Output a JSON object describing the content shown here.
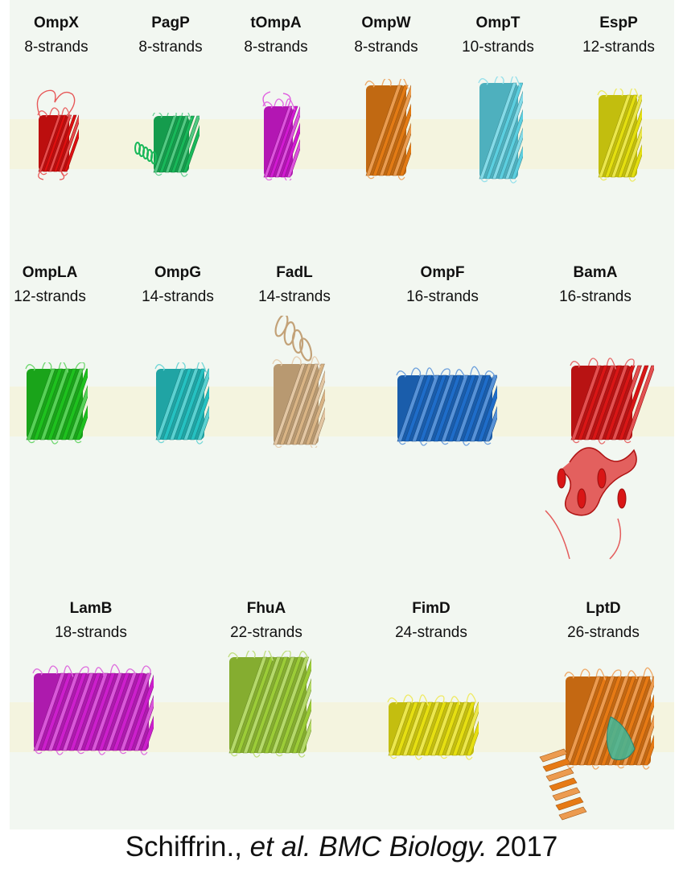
{
  "proteins": [
    {
      "name": "OmpX",
      "strands": "8-strands",
      "color": "#dd1010"
    },
    {
      "name": "PagP",
      "strands": "8-strands",
      "color": "#19b85a"
    },
    {
      "name": "tOmpA",
      "strands": "8-strands",
      "color": "#d21ad2"
    },
    {
      "name": "OmpW",
      "strands": "8-strands",
      "color": "#e37b15"
    },
    {
      "name": "OmpT",
      "strands": "10-strands",
      "color": "#5ccfe0"
    },
    {
      "name": "EspP",
      "strands": "12-strands",
      "color": "#e4df10"
    },
    {
      "name": "OmpLA",
      "strands": "12-strands",
      "color": "#1fc11f"
    },
    {
      "name": "OmpG",
      "strands": "14-strands",
      "color": "#26c1c1"
    },
    {
      "name": "FadL",
      "strands": "14-strands",
      "color": "#d9b485"
    },
    {
      "name": "OmpF",
      "strands": "16-strands",
      "color": "#1f6dc9"
    },
    {
      "name": "BamA",
      "strands": "16-strands",
      "color": "#d91616"
    },
    {
      "name": "LamB",
      "strands": "18-strands",
      "color": "#cc1fcc"
    },
    {
      "name": "FhuA",
      "strands": "22-strands",
      "color": "#9ccc38"
    },
    {
      "name": "FimD",
      "strands": "24-strands",
      "color": "#e6df12"
    },
    {
      "name": "LptD",
      "strands": "26-strands",
      "color": "#e67a15"
    }
  ],
  "colors": {
    "panel_background": "#f2f7f1",
    "membrane_band": "#f4f4df",
    "lptd_secondary": "#3fb89a"
  },
  "citation": {
    "author": "Schiffrin.,",
    "etal": "et al. BMC Biology.",
    "year": "2017"
  }
}
